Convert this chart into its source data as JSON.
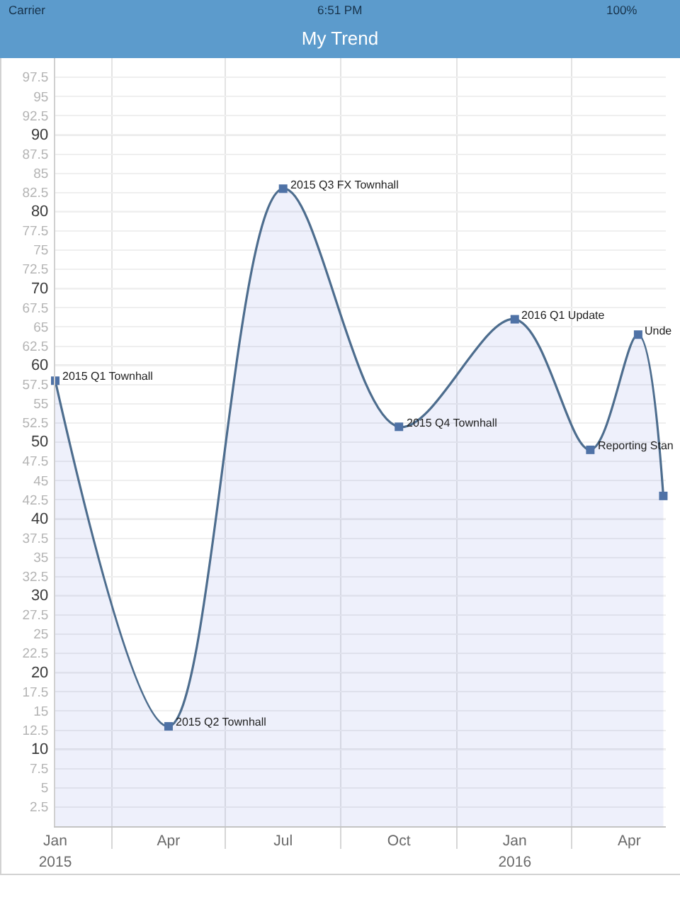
{
  "chart_data": {
    "type": "area",
    "title": "My Trend",
    "x": [
      "2015-01-01",
      "2015-04-01",
      "2015-07-01",
      "2015-10-01",
      "2016-01-01",
      "2016-03-01",
      "2016-04-08",
      "2016-04-28"
    ],
    "series": [
      {
        "color": "#4d6d8e",
        "values": [
          58,
          13,
          83,
          52,
          66,
          49,
          64,
          43
        ]
      }
    ],
    "xlim": [
      "2015-01-01",
      "2016-04-30"
    ],
    "xticks": [
      {
        "value": "2015-01-01",
        "label": "Jan"
      },
      {
        "value": "2015-02-15",
        "label": null
      },
      {
        "value": "2015-04-01",
        "label": "Apr"
      },
      {
        "value": "2015-05-16",
        "label": null
      },
      {
        "value": "2015-07-01",
        "label": "Jul"
      },
      {
        "value": "2015-08-16",
        "label": null
      },
      {
        "value": "2015-10-01",
        "label": "Oct"
      },
      {
        "value": "2015-11-16",
        "label": null
      },
      {
        "value": "2016-01-01",
        "label": "Jan"
      },
      {
        "value": "2016-02-15",
        "label": null
      },
      {
        "value": "2016-04-01",
        "label": "Apr"
      }
    ],
    "x2lim": [
      "2015-01-01",
      "2016-04-30"
    ],
    "x2ticks": [
      {
        "value": "2015-01-01",
        "label": "2015"
      },
      {
        "value": "2016-01-01",
        "label": "2016"
      }
    ],
    "ylim": [
      0,
      100
    ],
    "yticks": [
      2.5,
      5,
      7.5,
      10,
      12.5,
      15,
      17.5,
      20,
      22.5,
      25,
      27.5,
      30,
      32.5,
      35,
      37.5,
      40,
      42.5,
      45,
      47.5,
      50,
      52.5,
      55,
      57.5,
      60,
      62.5,
      65,
      67.5,
      70,
      72.5,
      75,
      77.5,
      80,
      82.5,
      85,
      87.5,
      90,
      92.5,
      95,
      97.5
    ],
    "grid": true,
    "marker": "square",
    "annotations": [
      "Carrier",
      "6:51 PM",
      "100%",
      {
        "text": "2015 Q1 Townhall",
        "x": "2015-01-01",
        "y": 58
      },
      {
        "text": "2015 Q2 Townhall",
        "x": "2015-04-01",
        "y": 13
      },
      {
        "text": "2015 Q3 FX Townhall",
        "x": "2015-07-01",
        "y": 83
      },
      {
        "text": "2015 Q4 Townhall",
        "x": "2015-10-01",
        "y": 52
      },
      {
        "text": "2016 Q1 Update",
        "x": "2016-01-01",
        "y": 66
      },
      {
        "text": "Reporting Stan",
        "x": "2016-03-01",
        "y": 49
      },
      {
        "text": "Unde",
        "x": "2016-04-08",
        "y": 64
      }
    ]
  }
}
